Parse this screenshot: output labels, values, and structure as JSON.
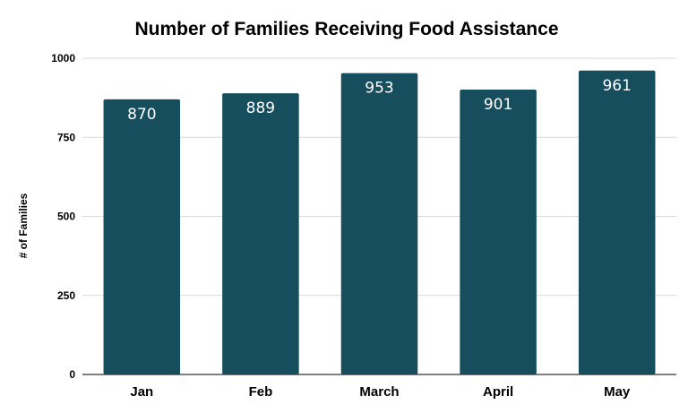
{
  "chart_data": {
    "type": "bar",
    "title": "Number of Families Receiving Food Assistance",
    "xlabel": "",
    "ylabel": "# of Families",
    "categories": [
      "Jan",
      "Feb",
      "March",
      "April",
      "May"
    ],
    "values": [
      870,
      889,
      953,
      901,
      961
    ],
    "data_labels": [
      "870",
      "889",
      "953",
      "901",
      "961"
    ],
    "ylim": [
      0,
      1000
    ],
    "yticks": [
      0,
      250,
      500,
      750,
      1000
    ],
    "ytick_labels": [
      "0",
      "250",
      "500",
      "750",
      "1000"
    ],
    "grid": true,
    "legend": "none",
    "bar_color": "#174e5d"
  }
}
